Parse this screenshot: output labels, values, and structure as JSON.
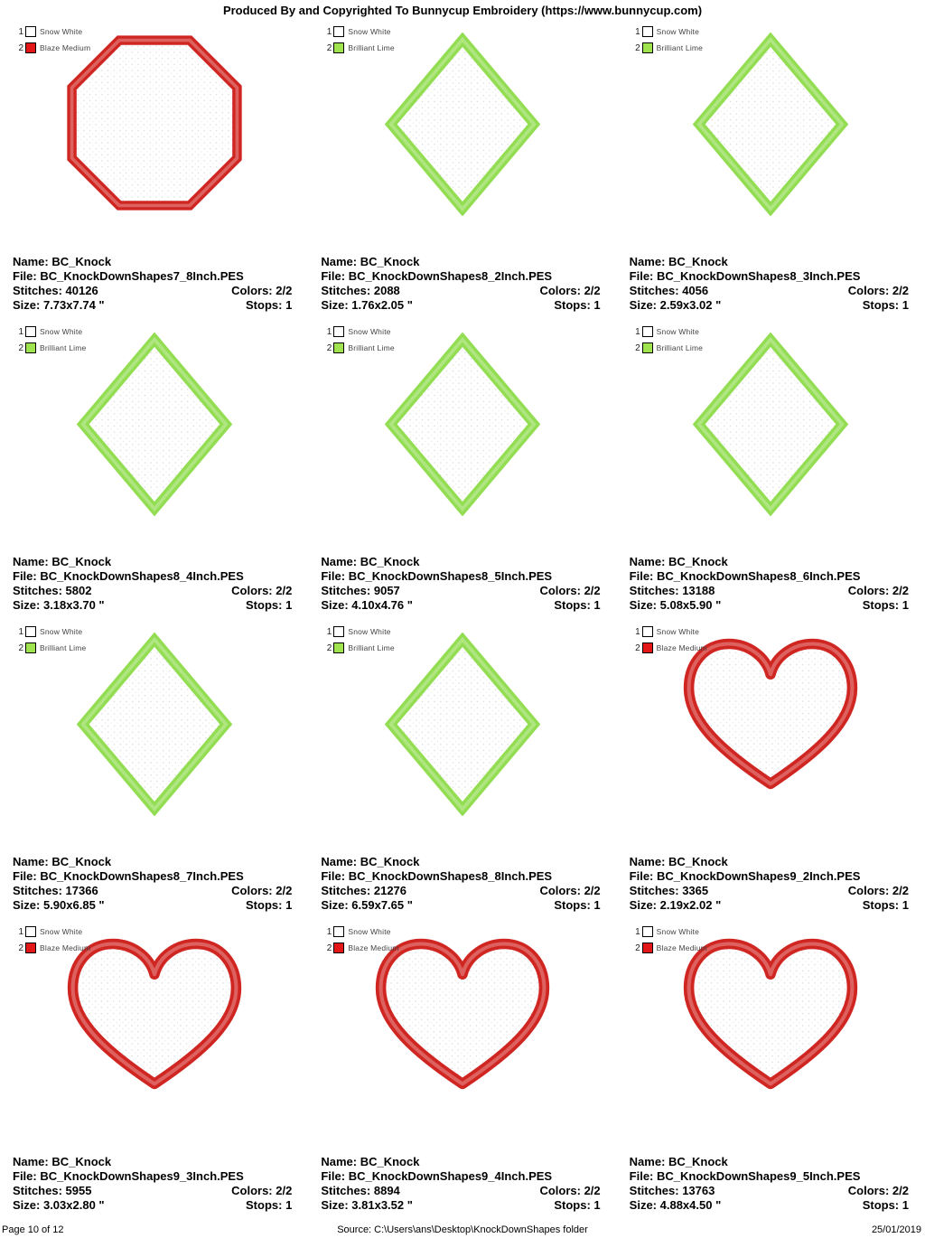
{
  "header": {
    "title": "Produced By and Copyrighted To Bunnycup Embroidery (https://www.bunnycup.com)"
  },
  "labels": {
    "name": "Name:",
    "file": "File:",
    "stitches": "Stitches:",
    "colors": "Colors:",
    "size": "Size:",
    "stops": "Stops:"
  },
  "colors": {
    "snow_white": "#ffffff",
    "blaze_medium": "#e31717",
    "brilliant_lime": "#9fe44e",
    "red_thread": "#d02622",
    "green_thread": "#92dd52"
  },
  "footer": {
    "page": "Page 10 of 12",
    "source": "Source: C:\\Users\\ans\\Desktop\\KnockDownShapes folder",
    "date": "25/01/2019"
  },
  "cells": [
    {
      "shape": {
        "type": "octagon",
        "color": "blaze_medium"
      },
      "legend": [
        {
          "num": "1",
          "color_key": "snow_white",
          "label": "Snow White"
        },
        {
          "num": "2",
          "color_key": "blaze_medium",
          "label": "Blaze Medium"
        }
      ],
      "name": "BC_Knock",
      "file": "BC_KnockDownShapes7_8Inch.PES",
      "stitches": "40126",
      "colors": "2/2",
      "size": "7.73x7.74 \"",
      "stops": "1"
    },
    {
      "shape": {
        "type": "diamond",
        "color": "brilliant_lime"
      },
      "legend": [
        {
          "num": "1",
          "color_key": "snow_white",
          "label": "Snow White"
        },
        {
          "num": "2",
          "color_key": "brilliant_lime",
          "label": "Brilliant Lime"
        }
      ],
      "name": "BC_Knock",
      "file": "BC_KnockDownShapes8_2Inch.PES",
      "stitches": "2088",
      "colors": "2/2",
      "size": "1.76x2.05 \"",
      "stops": "1"
    },
    {
      "shape": {
        "type": "diamond",
        "color": "brilliant_lime"
      },
      "legend": [
        {
          "num": "1",
          "color_key": "snow_white",
          "label": "Snow White"
        },
        {
          "num": "2",
          "color_key": "brilliant_lime",
          "label": "Brilliant Lime"
        }
      ],
      "name": "BC_Knock",
      "file": "BC_KnockDownShapes8_3Inch.PES",
      "stitches": "4056",
      "colors": "2/2",
      "size": "2.59x3.02 \"",
      "stops": "1"
    },
    {
      "shape": {
        "type": "diamond",
        "color": "brilliant_lime"
      },
      "legend": [
        {
          "num": "1",
          "color_key": "snow_white",
          "label": "Snow White"
        },
        {
          "num": "2",
          "color_key": "brilliant_lime",
          "label": "Brilliant Lime"
        }
      ],
      "name": "BC_Knock",
      "file": "BC_KnockDownShapes8_4Inch.PES",
      "stitches": "5802",
      "colors": "2/2",
      "size": "3.18x3.70 \"",
      "stops": "1"
    },
    {
      "shape": {
        "type": "diamond",
        "color": "brilliant_lime"
      },
      "legend": [
        {
          "num": "1",
          "color_key": "snow_white",
          "label": "Snow White"
        },
        {
          "num": "2",
          "color_key": "brilliant_lime",
          "label": "Brilliant Lime"
        }
      ],
      "name": "BC_Knock",
      "file": "BC_KnockDownShapes8_5Inch.PES",
      "stitches": "9057",
      "colors": "2/2",
      "size": "4.10x4.76 \"",
      "stops": "1"
    },
    {
      "shape": {
        "type": "diamond",
        "color": "brilliant_lime"
      },
      "legend": [
        {
          "num": "1",
          "color_key": "snow_white",
          "label": "Snow White"
        },
        {
          "num": "2",
          "color_key": "brilliant_lime",
          "label": "Brilliant Lime"
        }
      ],
      "name": "BC_Knock",
      "file": "BC_KnockDownShapes8_6Inch.PES",
      "stitches": "13188",
      "colors": "2/2",
      "size": "5.08x5.90 \"",
      "stops": "1"
    },
    {
      "shape": {
        "type": "diamond",
        "color": "brilliant_lime"
      },
      "legend": [
        {
          "num": "1",
          "color_key": "snow_white",
          "label": "Snow White"
        },
        {
          "num": "2",
          "color_key": "brilliant_lime",
          "label": "Brilliant Lime"
        }
      ],
      "name": "BC_Knock",
      "file": "BC_KnockDownShapes8_7Inch.PES",
      "stitches": "17366",
      "colors": "2/2",
      "size": "5.90x6.85 \"",
      "stops": "1"
    },
    {
      "shape": {
        "type": "diamond",
        "color": "brilliant_lime"
      },
      "legend": [
        {
          "num": "1",
          "color_key": "snow_white",
          "label": "Snow White"
        },
        {
          "num": "2",
          "color_key": "brilliant_lime",
          "label": "Brilliant Lime"
        }
      ],
      "name": "BC_Knock",
      "file": "BC_KnockDownShapes8_8Inch.PES",
      "stitches": "21276",
      "colors": "2/2",
      "size": "6.59x7.65 \"",
      "stops": "1"
    },
    {
      "shape": {
        "type": "heart",
        "color": "blaze_medium"
      },
      "legend": [
        {
          "num": "1",
          "color_key": "snow_white",
          "label": "Snow White"
        },
        {
          "num": "2",
          "color_key": "blaze_medium",
          "label": "Blaze Medium"
        }
      ],
      "name": "BC_Knock",
      "file": "BC_KnockDownShapes9_2Inch.PES",
      "stitches": "3365",
      "colors": "2/2",
      "size": "2.19x2.02 \"",
      "stops": "1"
    },
    {
      "shape": {
        "type": "heart",
        "color": "blaze_medium"
      },
      "legend": [
        {
          "num": "1",
          "color_key": "snow_white",
          "label": "Snow White"
        },
        {
          "num": "2",
          "color_key": "blaze_medium",
          "label": "Blaze Medium"
        }
      ],
      "name": "BC_Knock",
      "file": "BC_KnockDownShapes9_3Inch.PES",
      "stitches": "5955",
      "colors": "2/2",
      "size": "3.03x2.80 \"",
      "stops": "1"
    },
    {
      "shape": {
        "type": "heart",
        "color": "blaze_medium"
      },
      "legend": [
        {
          "num": "1",
          "color_key": "snow_white",
          "label": "Snow White"
        },
        {
          "num": "2",
          "color_key": "blaze_medium",
          "label": "Blaze Medium"
        }
      ],
      "name": "BC_Knock",
      "file": "BC_KnockDownShapes9_4Inch.PES",
      "stitches": "8894",
      "colors": "2/2",
      "size": "3.81x3.52 \"",
      "stops": "1"
    },
    {
      "shape": {
        "type": "heart",
        "color": "blaze_medium"
      },
      "legend": [
        {
          "num": "1",
          "color_key": "snow_white",
          "label": "Snow White"
        },
        {
          "num": "2",
          "color_key": "blaze_medium",
          "label": "Blaze Medium"
        }
      ],
      "name": "BC_Knock",
      "file": "BC_KnockDownShapes9_5Inch.PES",
      "stitches": "13763",
      "colors": "2/2",
      "size": "4.88x4.50 \"",
      "stops": "1"
    }
  ]
}
